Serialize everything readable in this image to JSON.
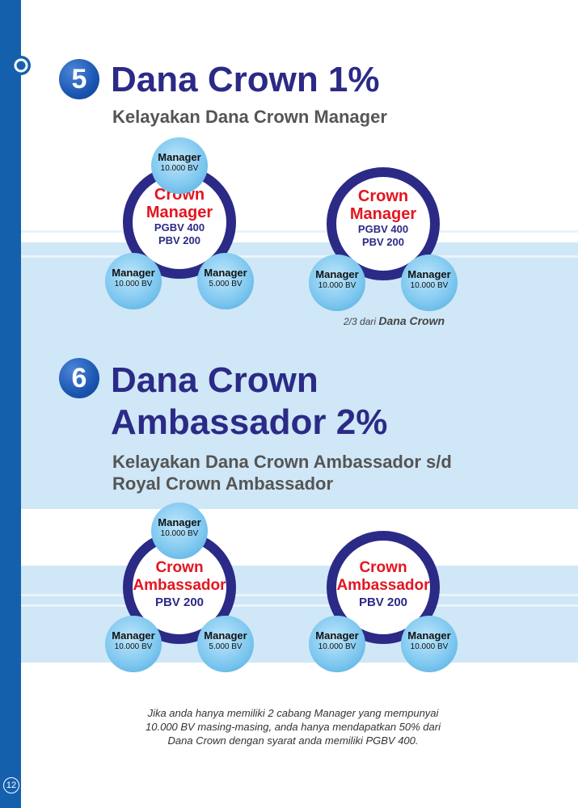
{
  "page": {
    "number": "12"
  },
  "section5": {
    "number": "5",
    "title": "Dana Crown 1%",
    "subtitle": "Kelayakan Dana Crown Manager",
    "diagram_left": {
      "center_line1": "Crown",
      "center_line2": "Manager",
      "center_line3": "PGBV 400",
      "center_line4": "PBV 200",
      "top": {
        "label": "Manager",
        "value": "10.000 BV"
      },
      "bottom_left": {
        "label": "Manager",
        "value": "10.000 BV"
      },
      "bottom_right": {
        "label": "Manager",
        "value": "5.000 BV"
      }
    },
    "diagram_right": {
      "center_line1": "Crown",
      "center_line2": "Manager",
      "center_line3": "PGBV 400",
      "center_line4": "PBV 200",
      "bottom_left": {
        "label": "Manager",
        "value": "10.000 BV"
      },
      "bottom_right": {
        "label": "Manager",
        "value": "10.000 BV"
      }
    },
    "note_prefix": "2/3 dari",
    "note_emphasis": "Dana Crown"
  },
  "section6": {
    "number": "6",
    "title_line1": "Dana Crown",
    "title_line2": "Ambassador  2%",
    "subtitle_line1": "Kelayakan Dana Crown Ambassador s/d",
    "subtitle_line2": "Royal Crown Ambassador",
    "diagram_left": {
      "center_line1": "Crown",
      "center_line2": "Ambassador",
      "center_line3": "PBV 200",
      "top": {
        "label": "Manager",
        "value": "10.000 BV"
      },
      "bottom_left": {
        "label": "Manager",
        "value": "10.000 BV"
      },
      "bottom_right": {
        "label": "Manager",
        "value": "5.000 BV"
      }
    },
    "diagram_right": {
      "center_line1": "Crown",
      "center_line2": "Ambassador",
      "center_line3": "PBV 200",
      "bottom_left": {
        "label": "Manager",
        "value": "10.000 BV"
      },
      "bottom_right": {
        "label": "Manager",
        "value": "10.000 BV"
      }
    },
    "footnote_line1": "Jika anda hanya memiliki 2 cabang Manager yang mempunyai",
    "footnote_line2": "10.000 BV masing-masing, anda hanya mendapatkan 50% dari",
    "footnote_line3": "Dana Crown dengan syarat  anda memiliki PGBV 400."
  }
}
